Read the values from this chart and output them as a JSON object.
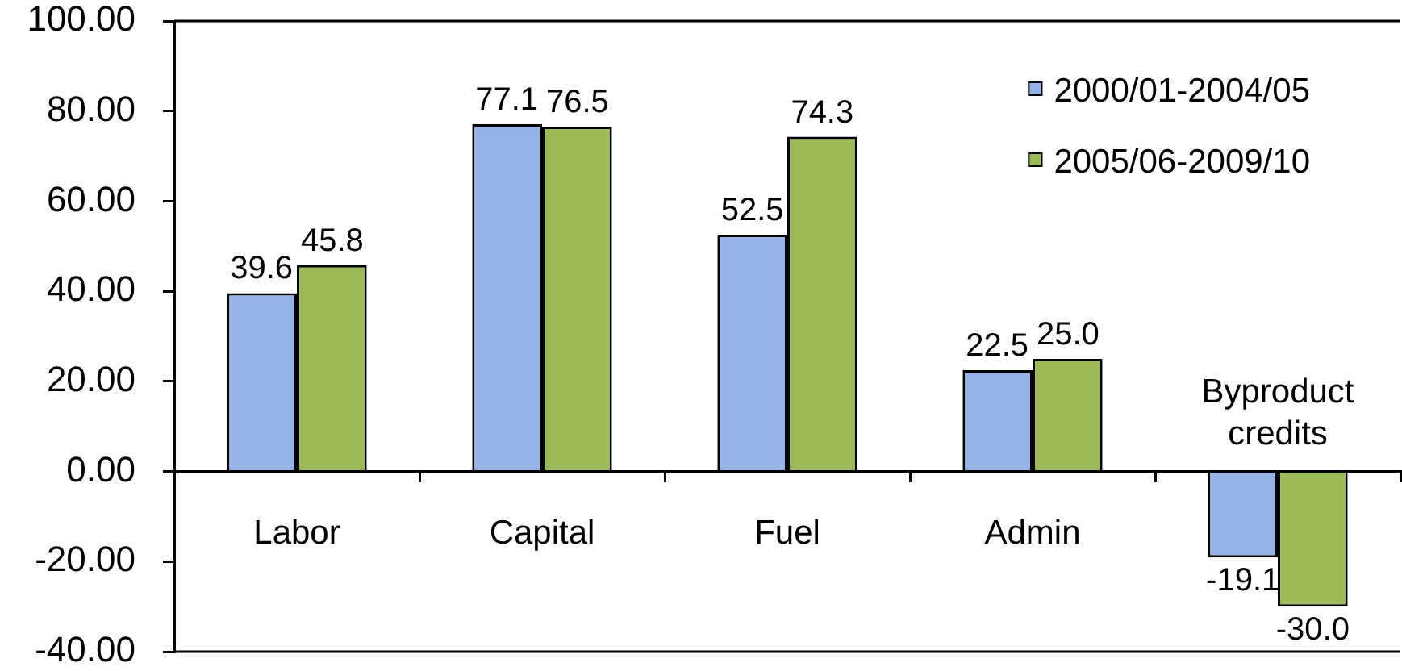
{
  "chart_data": {
    "type": "bar",
    "categories": [
      "Labor",
      "Capital",
      "Fuel",
      "Admin",
      "Byproduct credits"
    ],
    "series": [
      {
        "name": "2000/01-2004/05",
        "color": "#95b3e6",
        "values": [
          39.6,
          77.1,
          52.5,
          22.5,
          -19.1
        ],
        "value_labels": [
          "39.6",
          "77.1",
          "52.5",
          "22.5",
          "-19.1"
        ]
      },
      {
        "name": "2005/06-2009/10",
        "color": "#9bbb59",
        "values": [
          45.8,
          76.5,
          74.3,
          25.0,
          -30.0
        ],
        "value_labels": [
          "45.8",
          "76.5",
          "74.3",
          "25.0",
          "-30.0"
        ]
      }
    ],
    "ylim": [
      -40,
      100
    ],
    "yticks": [
      {
        "value": -40,
        "label": "-40.00"
      },
      {
        "value": -20,
        "label": "-20.00"
      },
      {
        "value": 0,
        "label": "0.00"
      },
      {
        "value": 20,
        "label": "20.00"
      },
      {
        "value": 40,
        "label": "40.00"
      },
      {
        "value": 60,
        "label": "60.00"
      },
      {
        "value": 80,
        "label": "80.00"
      },
      {
        "value": 100,
        "label": "100.00"
      }
    ],
    "legend": "top right"
  }
}
